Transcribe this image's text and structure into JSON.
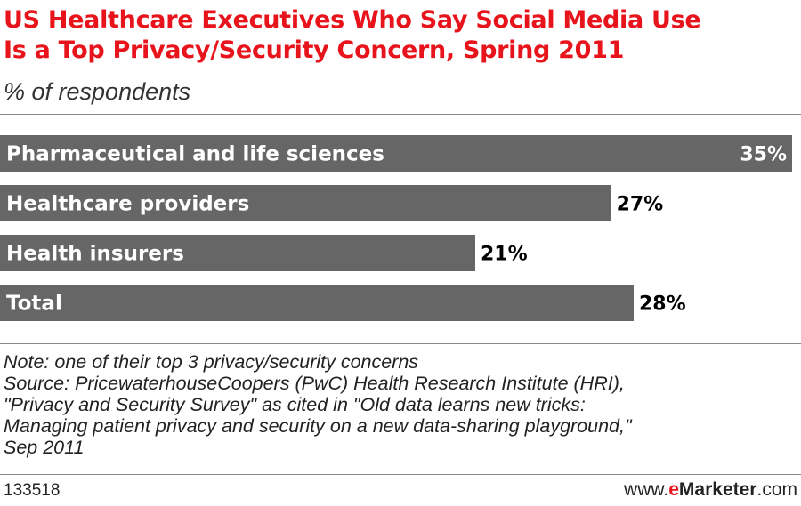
{
  "title_line1": "US Healthcare Executives Who Say Social Media Use",
  "title_line2": "Is a Top Privacy/Security Concern, Spring 2011",
  "subtitle": "% of respondents",
  "colors": {
    "title": "#e8141b",
    "bar": "#666666",
    "brand_accent": "#e8141b"
  },
  "chart_data": {
    "type": "bar",
    "orientation": "horizontal",
    "categories": [
      "Pharmaceutical and life sciences",
      "Healthcare providers",
      "Health insurers",
      "Total"
    ],
    "values": [
      35,
      27,
      21,
      28
    ],
    "value_labels": [
      "35%",
      "27%",
      "21%",
      "28%"
    ],
    "unit": "%",
    "xlim": [
      0,
      35
    ],
    "grid": false
  },
  "notes": [
    "Note: one of their top 3 privacy/security concerns",
    "Source: PricewaterhouseCoopers (PwC) Health Research Institute (HRI),",
    "\"Privacy and Security Survey\" as cited in \"Old data learns new tricks:",
    "Managing patient privacy and security on a new data-sharing playground,\"",
    "Sep 2011"
  ],
  "footer": {
    "chart_id": "133518",
    "brand_prefix": "www.",
    "brand_accent": "e",
    "brand_name": "Marketer",
    "brand_suffix": ".com"
  }
}
